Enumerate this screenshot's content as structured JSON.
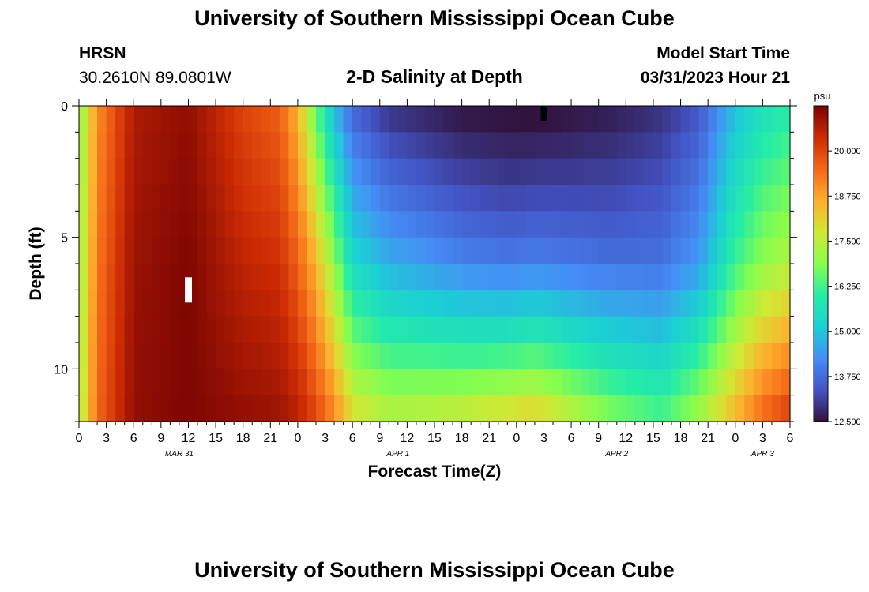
{
  "page": {
    "title_top": "University of Southern Mississippi Ocean Cube",
    "title_bottom": "University of Southern Mississippi Ocean Cube",
    "station": "HRSN",
    "coords": "30.2610N  89.0801W",
    "plot_title": "2-D Salinity at Depth",
    "model_label": "Model Start Time",
    "model_time": "03/31/2023 Hour 21"
  },
  "chart_data": {
    "type": "heatmap",
    "title": "2-D Salinity at Depth",
    "xlabel": "Forecast Time(Z)",
    "ylabel": "Depth (ft)",
    "x_range_hours": [
      0,
      78
    ],
    "y_range_ft": [
      0,
      12
    ],
    "y_inverted": true,
    "y_ticks": [
      "0",
      "5",
      "10"
    ],
    "x_ticks": [
      "0",
      "3",
      "6",
      "9",
      "12",
      "15",
      "18",
      "21",
      "0",
      "3",
      "6",
      "9",
      "12",
      "15",
      "18",
      "21",
      "0",
      "3",
      "6",
      "9",
      "12",
      "15",
      "18",
      "21",
      "0",
      "3",
      "6"
    ],
    "date_labels": [
      {
        "label": "MAR 31",
        "hour": 11
      },
      {
        "label": "APR 1",
        "hour": 35
      },
      {
        "label": "APR 2",
        "hour": 59
      },
      {
        "label": "APR 3",
        "hour": 75
      }
    ],
    "colorbar": {
      "unit": "psu",
      "min": 12.5,
      "max": 21.25,
      "ticks": [
        "20.000",
        "18.750",
        "17.500",
        "16.250",
        "15.000",
        "13.750",
        "12.500"
      ],
      "tick_values": [
        20.0,
        18.75,
        17.5,
        16.25,
        15.0,
        13.75,
        12.5
      ],
      "colormap": "turbo"
    },
    "salinity_profiles": {
      "depths_ft": [
        0,
        6,
        12
      ],
      "keyframes": [
        {
          "hour": 0,
          "values": [
            16.8,
            17.0,
            17.2
          ]
        },
        {
          "hour": 2,
          "values": [
            19.0,
            19.3,
            19.5
          ]
        },
        {
          "hour": 6,
          "values": [
            20.7,
            20.9,
            21.0
          ]
        },
        {
          "hour": 12,
          "values": [
            21.0,
            21.2,
            21.2
          ]
        },
        {
          "hour": 18,
          "values": [
            20.0,
            20.5,
            21.0
          ]
        },
        {
          "hour": 22,
          "values": [
            19.6,
            20.3,
            20.9
          ]
        },
        {
          "hour": 24,
          "values": [
            18.5,
            19.6,
            20.6
          ]
        },
        {
          "hour": 26,
          "values": [
            16.5,
            18.5,
            20.0
          ]
        },
        {
          "hour": 28,
          "values": [
            14.8,
            17.0,
            19.2
          ]
        },
        {
          "hour": 30,
          "values": [
            13.6,
            15.5,
            18.0
          ]
        },
        {
          "hour": 34,
          "values": [
            12.9,
            14.9,
            17.5
          ]
        },
        {
          "hour": 42,
          "values": [
            12.5,
            14.6,
            17.8
          ]
        },
        {
          "hour": 50,
          "values": [
            12.4,
            14.6,
            18.3
          ]
        },
        {
          "hour": 58,
          "values": [
            12.6,
            14.1,
            17.0
          ]
        },
        {
          "hour": 64,
          "values": [
            12.9,
            13.9,
            16.4
          ]
        },
        {
          "hour": 68,
          "values": [
            13.4,
            14.4,
            17.3
          ]
        },
        {
          "hour": 72,
          "values": [
            14.9,
            16.2,
            18.6
          ]
        },
        {
          "hour": 75,
          "values": [
            15.6,
            17.0,
            19.6
          ]
        },
        {
          "hour": 78,
          "values": [
            15.9,
            17.4,
            20.2
          ]
        }
      ]
    },
    "markers": [
      {
        "color": "#000000",
        "hour": 51,
        "depth_ft": 0.3
      },
      {
        "color": "#ffffff",
        "hour": 12,
        "depth_ft": 7.0
      }
    ]
  }
}
